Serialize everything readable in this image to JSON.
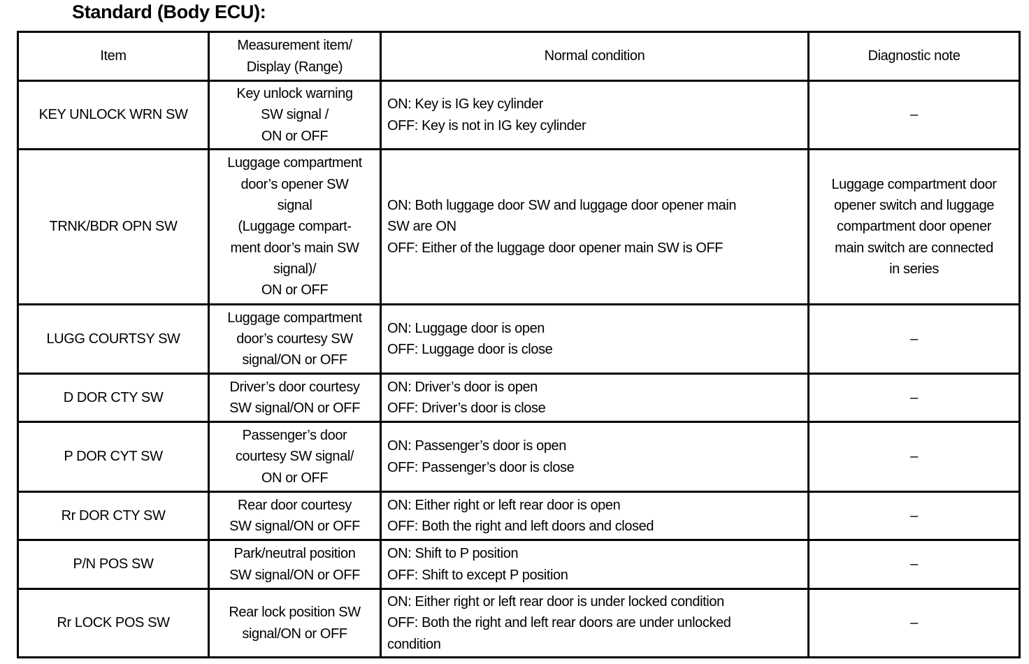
{
  "title": "Standard (Body ECU):",
  "table": {
    "headers": [
      [
        "Item"
      ],
      [
        "Measurement item/",
        "Display (Range)"
      ],
      [
        "Normal condition"
      ],
      [
        "Diagnostic note"
      ]
    ],
    "rows": [
      {
        "item": [
          "KEY UNLOCK WRN SW"
        ],
        "measurement": [
          "Key unlock warning",
          "SW signal /",
          "ON or OFF"
        ],
        "condition": [
          "ON: Key is IG key cylinder",
          "OFF: Key is not in IG key cylinder"
        ],
        "note": [
          "–"
        ]
      },
      {
        "item": [
          "TRNK/BDR OPN SW"
        ],
        "measurement": [
          "Luggage compartment",
          "door’s opener SW",
          "signal",
          "(Luggage compart-",
          "ment door’s main SW",
          "signal)/",
          "ON or OFF"
        ],
        "condition": [
          "ON: Both luggage door SW and luggage door opener main",
          "SW are ON",
          "OFF: Either of the luggage door opener main SW is OFF"
        ],
        "note": [
          "Luggage compartment door",
          "opener switch and luggage",
          "compartment door opener",
          "main switch are connected",
          "in series"
        ]
      },
      {
        "item": [
          "LUGG COURTSY SW"
        ],
        "measurement": [
          "Luggage compartment",
          "door’s courtesy SW",
          "signal/ON or OFF"
        ],
        "condition": [
          "ON: Luggage door is open",
          "OFF: Luggage door is close"
        ],
        "note": [
          "–"
        ]
      },
      {
        "item": [
          "D DOR CTY SW"
        ],
        "measurement": [
          "Driver’s door courtesy",
          "SW signal/ON or OFF"
        ],
        "condition": [
          "ON: Driver’s door is open",
          "OFF: Driver’s door is close"
        ],
        "note": [
          "–"
        ]
      },
      {
        "item": [
          "P DOR CYT SW"
        ],
        "measurement": [
          "Passenger’s door",
          "courtesy SW signal/",
          "ON or OFF"
        ],
        "condition": [
          "ON: Passenger’s door is open",
          "OFF: Passenger’s door is close"
        ],
        "note": [
          "–"
        ]
      },
      {
        "item": [
          "Rr DOR CTY SW"
        ],
        "measurement": [
          "Rear door courtesy",
          "SW signal/ON or OFF"
        ],
        "condition": [
          "ON: Either right or left rear door is open",
          "OFF: Both the right and left doors and closed"
        ],
        "note": [
          "–"
        ]
      },
      {
        "item": [
          "P/N POS SW"
        ],
        "measurement": [
          "Park/neutral position",
          "SW signal/ON or OFF"
        ],
        "condition": [
          "ON: Shift to P position",
          "OFF: Shift to except P position"
        ],
        "note": [
          "–"
        ]
      },
      {
        "item": [
          "Rr LOCK POS SW"
        ],
        "measurement": [
          "Rear lock position SW",
          "signal/ON or OFF"
        ],
        "condition": [
          "ON: Either right or left rear door is under locked condition",
          "OFF: Both the right and left rear doors are under unlocked",
          "condition"
        ],
        "note": [
          "–"
        ]
      }
    ]
  }
}
